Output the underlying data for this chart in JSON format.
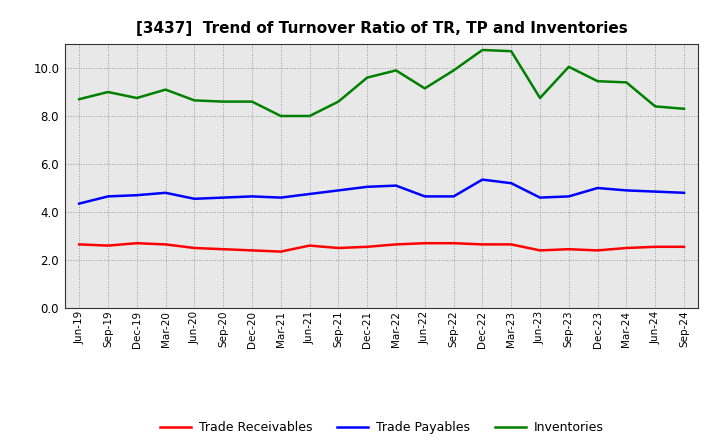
{
  "title": "[3437]  Trend of Turnover Ratio of TR, TP and Inventories",
  "labels": [
    "Jun-19",
    "Sep-19",
    "Dec-19",
    "Mar-20",
    "Jun-20",
    "Sep-20",
    "Dec-20",
    "Mar-21",
    "Jun-21",
    "Sep-21",
    "Dec-21",
    "Mar-22",
    "Jun-22",
    "Sep-22",
    "Dec-22",
    "Mar-23",
    "Jun-23",
    "Sep-23",
    "Dec-23",
    "Mar-24",
    "Jun-24",
    "Sep-24"
  ],
  "trade_receivables": [
    2.65,
    2.6,
    2.7,
    2.65,
    2.5,
    2.45,
    2.4,
    2.35,
    2.6,
    2.5,
    2.55,
    2.65,
    2.7,
    2.7,
    2.65,
    2.65,
    2.4,
    2.45,
    2.4,
    2.5,
    2.55,
    2.55
  ],
  "trade_payables": [
    4.35,
    4.65,
    4.7,
    4.8,
    4.55,
    4.6,
    4.65,
    4.6,
    4.75,
    4.9,
    5.05,
    5.1,
    4.65,
    4.65,
    5.35,
    5.2,
    4.6,
    4.65,
    5.0,
    4.9,
    4.85,
    4.8
  ],
  "inventories": [
    8.7,
    9.0,
    8.75,
    9.1,
    8.65,
    8.6,
    8.6,
    8.0,
    8.0,
    8.6,
    9.6,
    9.9,
    9.15,
    9.9,
    10.75,
    10.7,
    8.75,
    10.05,
    9.45,
    9.4,
    8.4,
    8.3
  ],
  "ylim": [
    0.0,
    11.0
  ],
  "yticks": [
    0.0,
    2.0,
    4.0,
    6.0,
    8.0,
    10.0
  ],
  "colors": {
    "trade_receivables": "#ff0000",
    "trade_payables": "#0000ff",
    "inventories": "#008000"
  },
  "legend_labels": [
    "Trade Receivables",
    "Trade Payables",
    "Inventories"
  ],
  "background_color": "#ffffff",
  "grid_color": "#999999",
  "plot_bg_color": "#e8e8e8"
}
